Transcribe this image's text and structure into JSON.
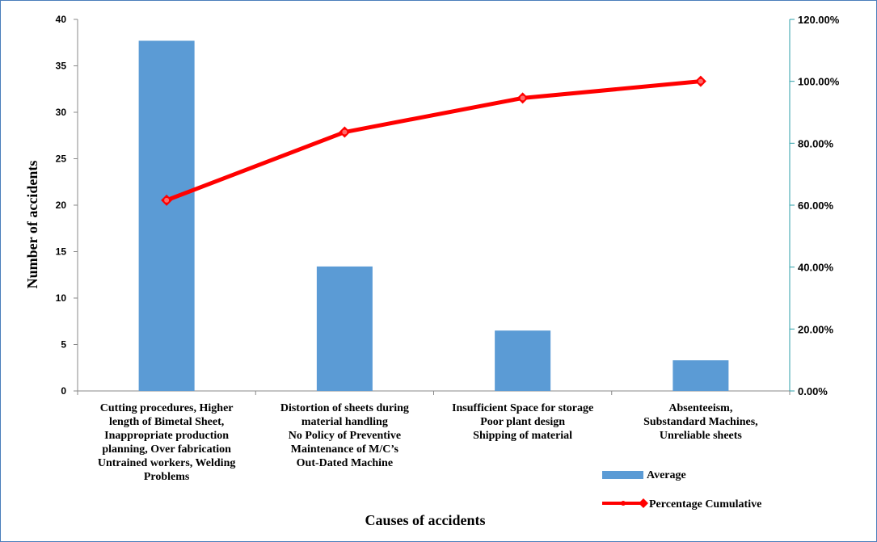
{
  "chart_data": {
    "type": "bar",
    "categories": [
      [
        "Cutting procedures, Higher",
        "length of Bimetal Sheet,",
        "Inappropriate production",
        "planning,  Over fabrication",
        "Untrained workers, Welding",
        "Problems"
      ],
      [
        "Distortion of sheets during",
        "material handling",
        "No Policy of Preventive",
        "Maintenance of M/C’s",
        "Out-Dated Machine"
      ],
      [
        "Insufficient Space for storage",
        "Poor plant design",
        "Shipping of material"
      ],
      [
        "Absenteeism,",
        "Substandard Machines,",
        "Unreliable sheets"
      ]
    ],
    "series": [
      {
        "name": "Average",
        "type": "bar",
        "axis": "left",
        "color": "#5b9bd5",
        "values": [
          37.7,
          13.4,
          6.5,
          3.3
        ]
      },
      {
        "name": "Percentage Cumulative",
        "type": "line",
        "axis": "right",
        "color": "#ff0000",
        "values": [
          61.6,
          83.6,
          94.6,
          100.0
        ]
      }
    ],
    "xlabel": "Causes of accidents",
    "ylabel": "Number of accidents",
    "ylim": [
      0,
      40
    ],
    "y_ticks": [
      "0",
      "5",
      "10",
      "15",
      "20",
      "25",
      "30",
      "35",
      "40"
    ],
    "y2lim": [
      0,
      120
    ],
    "y2_ticks": [
      "0.00%",
      "20.00%",
      "40.00%",
      "60.00%",
      "80.00%",
      "100.00%",
      "120.00%"
    ],
    "grid": false,
    "legend_position": "bottom-right"
  }
}
